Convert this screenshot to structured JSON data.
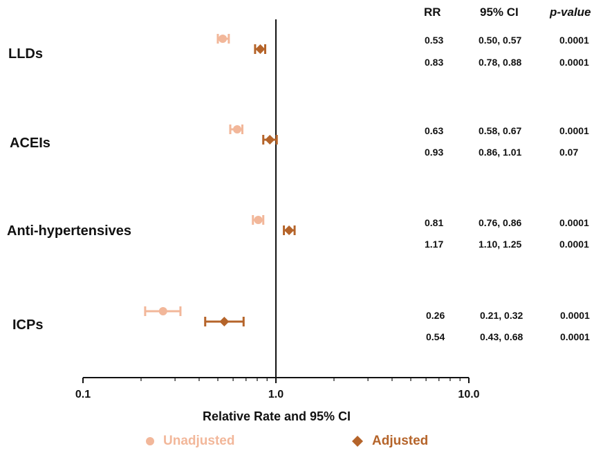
{
  "chart_data": {
    "type": "forest",
    "xlabel": "Relative Rate and 95% CI",
    "xscale": "log",
    "xlim": [
      0.1,
      10.0
    ],
    "reference_line": 1.0,
    "xticks": [
      "0.1",
      "1.0",
      "10.0"
    ],
    "columns": [
      "RR",
      "95% CI",
      "p-value"
    ],
    "categories": [
      "LLDs",
      "ACEIs",
      "Anti-hypertensives",
      "ICPs"
    ],
    "series": [
      {
        "name": "Unadjusted",
        "color": "#F2B79A",
        "marker": "circle",
        "points": [
          {
            "category": "LLDs",
            "rr": 0.53,
            "lo": 0.5,
            "hi": 0.57,
            "rr_label": "0.53",
            "ci_label": "0.50, 0.57",
            "p_label": "0.0001"
          },
          {
            "category": "ACEIs",
            "rr": 0.63,
            "lo": 0.58,
            "hi": 0.67,
            "rr_label": "0.63",
            "ci_label": "0.58, 0.67",
            "p_label": "0.0001"
          },
          {
            "category": "Anti-hypertensives",
            "rr": 0.81,
            "lo": 0.76,
            "hi": 0.86,
            "rr_label": "0.81",
            "ci_label": "0.76, 0.86",
            "p_label": "0.0001"
          },
          {
            "category": "ICPs",
            "rr": 0.26,
            "lo": 0.21,
            "hi": 0.32,
            "rr_label": "0.26",
            "ci_label": "0.21, 0.32",
            "p_label": "0.0001"
          }
        ]
      },
      {
        "name": "Adjusted",
        "color": "#B5642A",
        "marker": "diamond",
        "points": [
          {
            "category": "LLDs",
            "rr": 0.83,
            "lo": 0.78,
            "hi": 0.88,
            "rr_label": "0.83",
            "ci_label": "0.78, 0.88",
            "p_label": "0.0001"
          },
          {
            "category": "ACEIs",
            "rr": 0.93,
            "lo": 0.86,
            "hi": 1.01,
            "rr_label": "0.93",
            "ci_label": "0.86, 1.01",
            "p_label": "0.07"
          },
          {
            "category": "Anti-hypertensives",
            "rr": 1.17,
            "lo": 1.1,
            "hi": 1.25,
            "rr_label": "1.17",
            "ci_label": "1.10, 1.25",
            "p_label": "0.0001"
          },
          {
            "category": "ICPs",
            "rr": 0.54,
            "lo": 0.43,
            "hi": 0.68,
            "rr_label": "0.54",
            "ci_label": "0.43, 0.68",
            "p_label": "0.0001"
          }
        ]
      }
    ],
    "legend_position": "bottom"
  }
}
